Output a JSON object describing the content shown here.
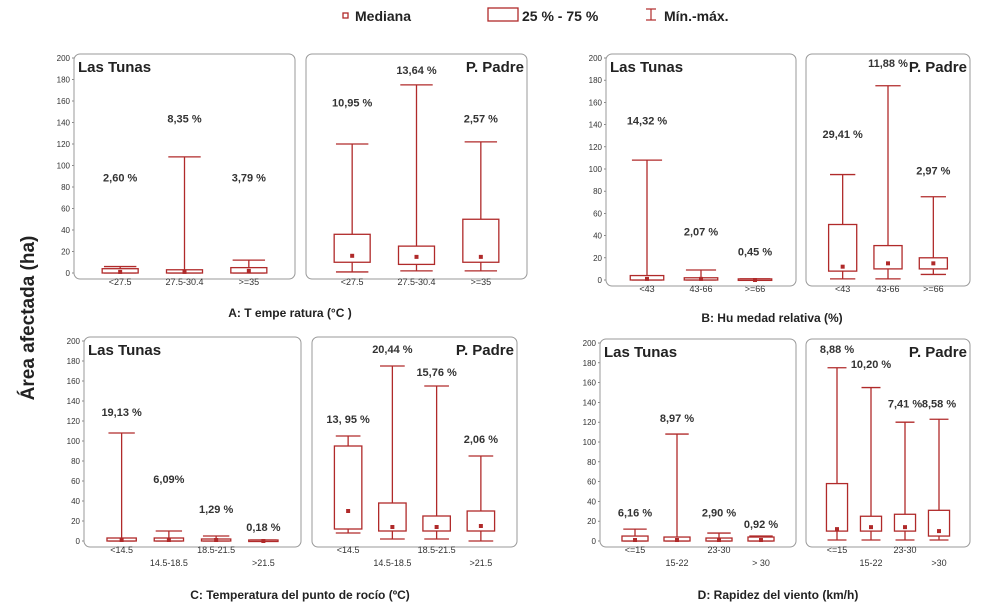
{
  "legend": {
    "median": "Mediana",
    "box": "25 % - 75 %",
    "whisker": "Mín.-máx."
  },
  "y_label": "Área afectada (ha)",
  "colors": {
    "series": "#b02a2a",
    "frame": "#999999",
    "axis": "#555555"
  },
  "chart_data": [
    {
      "type": "box",
      "id": "A",
      "caption": "A: T empe ratura (°C )",
      "ylim": [
        0,
        200
      ],
      "yticks": [
        "0",
        "20",
        "40",
        "60",
        "80",
        "100",
        "120",
        "140",
        "160",
        "180",
        "200"
      ],
      "panels": [
        {
          "name": "Las Tunas",
          "categories": [
            "<27.5",
            "27.5-30.4",
            ">=35"
          ],
          "boxes": [
            {
              "min": 0,
              "q1": 0,
              "median": 1,
              "q3": 4,
              "max": 6,
              "pct": "2,60 %",
              "pct_y": 85
            },
            {
              "min": 0,
              "q1": 0,
              "median": 1,
              "q3": 3,
              "max": 108,
              "pct": "8,35 %",
              "pct_y": 140
            },
            {
              "min": 0,
              "q1": 0,
              "median": 2,
              "q3": 5,
              "max": 12,
              "pct": "3,79 %",
              "pct_y": 85
            }
          ]
        },
        {
          "name": "P. Padre",
          "categories": [
            "<27.5",
            "27.5-30.4",
            ">=35"
          ],
          "boxes": [
            {
              "min": 1,
              "q1": 10,
              "median": 16,
              "q3": 36,
              "max": 120,
              "pct": "10,95 %",
              "pct_y": 155
            },
            {
              "min": 2,
              "q1": 8,
              "median": 15,
              "q3": 25,
              "max": 175,
              "pct": "13,64 %",
              "pct_y": 185
            },
            {
              "min": 2,
              "q1": 10,
              "median": 15,
              "q3": 50,
              "max": 122,
              "pct": "2,57 %",
              "pct_y": 140
            }
          ]
        }
      ]
    },
    {
      "type": "box",
      "id": "B",
      "caption": "B: Hu medad relativa (%)",
      "ylim": [
        0,
        200
      ],
      "yticks": [
        "0",
        "20",
        "40",
        "60",
        "80",
        "100",
        "120",
        "140",
        "160",
        "180",
        "200"
      ],
      "panels": [
        {
          "name": "Las Tunas",
          "categories": [
            "<43",
            "43-66",
            ">=66"
          ],
          "boxes": [
            {
              "min": 0,
              "q1": 0,
              "median": 1,
              "q3": 4,
              "max": 108,
              "pct": "14,32 %",
              "pct_y": 140
            },
            {
              "min": 0,
              "q1": 0,
              "median": 1,
              "q3": 2,
              "max": 9,
              "pct": "2,07 %",
              "pct_y": 40
            },
            {
              "min": 0,
              "q1": 0,
              "median": 0,
              "q3": 1,
              "max": 1,
              "pct": "0,45 %",
              "pct_y": 22
            }
          ]
        },
        {
          "name": "P. Padre",
          "categories": [
            "<43",
            "43-66",
            ">=66"
          ],
          "boxes": [
            {
              "min": 1,
              "q1": 8,
              "median": 12,
              "q3": 50,
              "max": 95,
              "pct": "29,41 %",
              "pct_y": 128
            },
            {
              "min": 1,
              "q1": 10,
              "median": 15,
              "q3": 31,
              "max": 175,
              "pct": "11,88 %",
              "pct_y": 192
            },
            {
              "min": 5,
              "q1": 10,
              "median": 15,
              "q3": 20,
              "max": 75,
              "pct": "2,97 %",
              "pct_y": 95
            }
          ]
        }
      ]
    },
    {
      "type": "box",
      "id": "C",
      "caption": "C: Temperatura del punto de rocío (ºC)",
      "ylim": [
        0,
        200
      ],
      "yticks": [
        "0",
        "20",
        "40",
        "60",
        "80",
        "100",
        "120",
        "140",
        "160",
        "180",
        "200"
      ],
      "panels": [
        {
          "name": "Las Tunas",
          "categories_top": [
            "<14.5",
            "",
            "18.5-21.5",
            ""
          ],
          "categories_bottom": [
            "",
            "14.5-18.5",
            "",
            ">21.5"
          ],
          "boxes": [
            {
              "min": 0,
              "q1": 0,
              "median": 1,
              "q3": 3,
              "max": 108,
              "pct": "19,13 %",
              "pct_y": 125
            },
            {
              "min": 0,
              "q1": 0,
              "median": 1,
              "q3": 3,
              "max": 10,
              "pct": "6,09%",
              "pct_y": 58
            },
            {
              "min": 0,
              "q1": 0,
              "median": 1,
              "q3": 2,
              "max": 5,
              "pct": "1,29 %",
              "pct_y": 28
            },
            {
              "min": 0,
              "q1": 0,
              "median": 0,
              "q3": 1,
              "max": 1,
              "pct": "0,18 %",
              "pct_y": 10
            }
          ]
        },
        {
          "name": "P. Padre",
          "categories_top": [
            "<14.5",
            "",
            "18.5-21.5",
            ""
          ],
          "categories_bottom": [
            "",
            "14.5-18.5",
            "",
            ">21.5"
          ],
          "boxes": [
            {
              "min": 8,
              "q1": 12,
              "median": 30,
              "q3": 95,
              "max": 105,
              "pct": "13, 95 %",
              "pct_y": 118
            },
            {
              "min": 2,
              "q1": 10,
              "median": 14,
              "q3": 38,
              "max": 175,
              "pct": "20,44 %",
              "pct_y": 188
            },
            {
              "min": 2,
              "q1": 10,
              "median": 14,
              "q3": 25,
              "max": 155,
              "pct": "15,76 %",
              "pct_y": 165
            },
            {
              "min": 0,
              "q1": 10,
              "median": 15,
              "q3": 30,
              "max": 85,
              "pct": "2,06 %",
              "pct_y": 98
            }
          ]
        }
      ]
    },
    {
      "type": "box",
      "id": "D",
      "caption": "D: Rapidez del viento (km/h)",
      "ylim": [
        0,
        200
      ],
      "yticks": [
        "0",
        "20",
        "40",
        "60",
        "80",
        "100",
        "120",
        "140",
        "160",
        "180",
        "200"
      ],
      "panels": [
        {
          "name": "Las Tunas",
          "categories_top": [
            "<=15",
            "",
            "23-30",
            ""
          ],
          "categories_bottom": [
            "",
            "15-22",
            "",
            "> 30"
          ],
          "boxes": [
            {
              "min": 0,
              "q1": 0,
              "median": 1,
              "q3": 5,
              "max": 12,
              "pct": "6,16 %",
              "pct_y": 25
            },
            {
              "min": 0,
              "q1": 0,
              "median": 1,
              "q3": 4,
              "max": 108,
              "pct": "8,97 %",
              "pct_y": 120
            },
            {
              "min": 0,
              "q1": 0,
              "median": 1,
              "q3": 3,
              "max": 8,
              "pct": "2,90 %",
              "pct_y": 25
            },
            {
              "min": 0,
              "q1": 0,
              "median": 1,
              "q3": 4,
              "max": 5,
              "pct": "0,92 %",
              "pct_y": 13
            }
          ]
        },
        {
          "name": "P. Padre",
          "categories_top": [
            "<=15",
            "",
            "23-30",
            ""
          ],
          "categories_bottom": [
            "",
            "15-22",
            "",
            ">30"
          ],
          "boxes": [
            {
              "min": 1,
              "q1": 10,
              "median": 12,
              "q3": 58,
              "max": 175,
              "pct": "8,88 %",
              "pct_y": 190
            },
            {
              "min": 1,
              "q1": 10,
              "median": 14,
              "q3": 25,
              "max": 155,
              "pct": "10,20 %",
              "pct_y": 175
            },
            {
              "min": 1,
              "q1": 10,
              "median": 14,
              "q3": 27,
              "max": 120,
              "pct": "7,41 %",
              "pct_y": 135
            },
            {
              "min": 1,
              "q1": 5,
              "median": 10,
              "q3": 31,
              "max": 123,
              "pct": "8,58 %",
              "pct_y": 135
            }
          ]
        }
      ]
    }
  ]
}
